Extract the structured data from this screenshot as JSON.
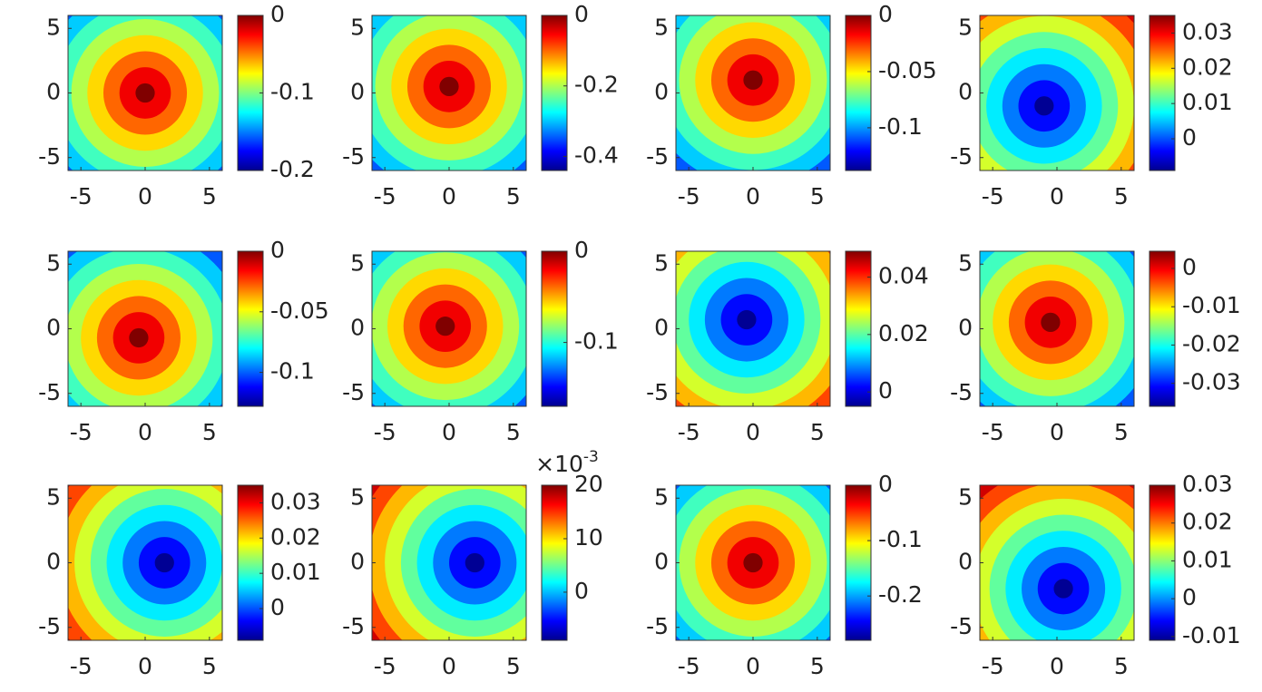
{
  "chart_data": [
    {
      "type": "contour",
      "xlim": [
        -6,
        6
      ],
      "ylim": [
        -6,
        6
      ],
      "xticks": [
        -5,
        0,
        5
      ],
      "yticks": [
        -5,
        0,
        5
      ],
      "clim": [
        -0.2,
        0
      ],
      "cticks": [
        -0.2,
        -0.1,
        0
      ],
      "peak": [
        0,
        0
      ],
      "extremum": "max"
    },
    {
      "type": "contour",
      "xlim": [
        -6,
        6
      ],
      "ylim": [
        -6,
        6
      ],
      "xticks": [
        -5,
        0,
        5
      ],
      "yticks": [
        -5,
        0,
        5
      ],
      "clim": [
        -0.44,
        0
      ],
      "cticks": [
        -0.4,
        -0.2,
        0
      ],
      "peak": [
        0,
        0.5
      ],
      "extremum": "max"
    },
    {
      "type": "contour",
      "xlim": [
        -6,
        6
      ],
      "ylim": [
        -6,
        6
      ],
      "xticks": [
        -5,
        0,
        5
      ],
      "yticks": [
        -5,
        0,
        5
      ],
      "clim": [
        -0.138,
        0
      ],
      "cticks": [
        -0.1,
        -0.05,
        0
      ],
      "peak": [
        0,
        1
      ],
      "extremum": "max"
    },
    {
      "type": "contour",
      "xlim": [
        -6,
        6
      ],
      "ylim": [
        -6,
        6
      ],
      "xticks": [
        -5,
        0,
        5
      ],
      "yticks": [
        -5,
        0,
        5
      ],
      "clim": [
        -0.009,
        0.035
      ],
      "cticks": [
        0,
        0.01,
        0.02,
        0.03
      ],
      "peak": [
        -1,
        -1
      ],
      "extremum": "min"
    },
    {
      "type": "contour",
      "xlim": [
        -6,
        6
      ],
      "ylim": [
        -6,
        6
      ],
      "xticks": [
        -5,
        0,
        5
      ],
      "yticks": [
        -5,
        0,
        5
      ],
      "clim": [
        -0.128,
        0
      ],
      "cticks": [
        -0.1,
        -0.05,
        0
      ],
      "peak": [
        -0.5,
        -0.7
      ],
      "extremum": "max"
    },
    {
      "type": "contour",
      "xlim": [
        -6,
        6
      ],
      "ylim": [
        -6,
        6
      ],
      "xticks": [
        -5,
        0,
        5
      ],
      "yticks": [
        -5,
        0,
        5
      ],
      "clim": [
        -0.17,
        0
      ],
      "cticks": [
        -0.1,
        0
      ],
      "peak": [
        -0.3,
        0.2
      ],
      "extremum": "max"
    },
    {
      "type": "contour",
      "xlim": [
        -6,
        6
      ],
      "ylim": [
        -6,
        6
      ],
      "xticks": [
        -5,
        0,
        5
      ],
      "yticks": [
        -5,
        0,
        5
      ],
      "clim": [
        -0.005,
        0.049
      ],
      "cticks": [
        0,
        0.02,
        0.04
      ],
      "peak": [
        -0.5,
        0.7
      ],
      "extremum": "min"
    },
    {
      "type": "contour",
      "xlim": [
        -6,
        6
      ],
      "ylim": [
        -6,
        6
      ],
      "xticks": [
        -5,
        0,
        5
      ],
      "yticks": [
        -5,
        0,
        5
      ],
      "clim": [
        -0.036,
        0.0045
      ],
      "cticks": [
        -0.03,
        -0.02,
        -0.01,
        0
      ],
      "peak": [
        -0.5,
        0.5
      ],
      "extremum": "max"
    },
    {
      "type": "contour",
      "xlim": [
        -6,
        6
      ],
      "ylim": [
        -6,
        6
      ],
      "xticks": [
        -5,
        0,
        5
      ],
      "yticks": [
        -5,
        0,
        5
      ],
      "clim": [
        -0.009,
        0.035
      ],
      "cticks": [
        0,
        0.01,
        0.02,
        0.03
      ],
      "peak": [
        1.5,
        0
      ],
      "extremum": "min"
    },
    {
      "type": "contour",
      "xlim": [
        -6,
        6
      ],
      "ylim": [
        -6,
        6
      ],
      "xticks": [
        -5,
        0,
        5
      ],
      "yticks": [
        -5,
        0,
        5
      ],
      "clim": [
        -9,
        20
      ],
      "cticks": [
        0,
        10,
        20
      ],
      "colorbar_scale_label": "×10",
      "colorbar_scale_exponent": "-3",
      "peak": [
        2,
        0
      ],
      "extremum": "min"
    },
    {
      "type": "contour",
      "xlim": [
        -6,
        6
      ],
      "ylim": [
        -6,
        6
      ],
      "xticks": [
        -5,
        0,
        5
      ],
      "yticks": [
        -5,
        0,
        5
      ],
      "clim": [
        -0.28,
        0
      ],
      "cticks": [
        -0.2,
        -0.1,
        0
      ],
      "peak": [
        0,
        0
      ],
      "extremum": "max"
    },
    {
      "type": "contour",
      "xlim": [
        -6,
        6
      ],
      "ylim": [
        -6,
        6
      ],
      "xticks": [
        -5,
        0,
        5
      ],
      "yticks": [
        -5,
        0,
        5
      ],
      "clim": [
        -0.011,
        0.03
      ],
      "cticks": [
        -0.01,
        0,
        0.01,
        0.02,
        0.03
      ],
      "peak": [
        0.5,
        -2
      ],
      "extremum": "min"
    }
  ]
}
